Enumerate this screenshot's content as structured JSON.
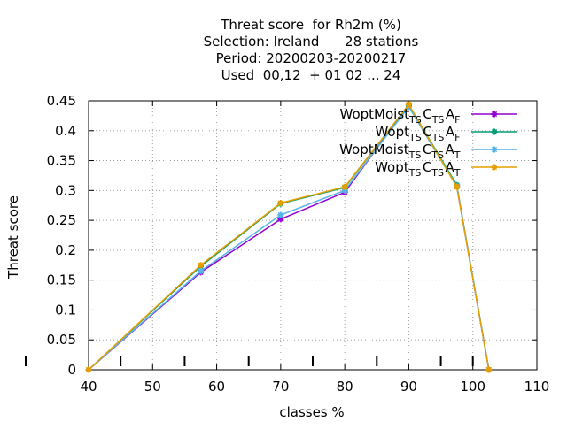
{
  "chart_data": {
    "type": "line",
    "title_lines": [
      "Threat score  for Rh2m (%)",
      "Selection: Ireland      28 stations",
      "Period: 20200203-20200217",
      "Used  00,12  + 01 02 ... 24"
    ],
    "xlabel": "classes %",
    "ylabel": "Threat score",
    "xlim": [
      40,
      110
    ],
    "ylim": [
      0,
      0.45
    ],
    "xticks": [
      40,
      50,
      60,
      70,
      80,
      90,
      100,
      110
    ],
    "yticks": [
      0,
      0.05,
      0.1,
      0.15,
      0.2,
      0.25,
      0.3,
      0.35,
      0.4,
      0.45
    ],
    "xtick_labels": [
      "40",
      "50",
      "60",
      "70",
      "80",
      "90",
      "100",
      "110"
    ],
    "ytick_labels": [
      "0",
      "0.05",
      "0.1",
      "0.15",
      "0.2",
      "0.25",
      "0.3",
      "0.35",
      "0.4",
      "0.45"
    ],
    "class_bounds": [
      45,
      55,
      65,
      75,
      85,
      95,
      100
    ],
    "grid": true,
    "legend_position": "top-right",
    "series": [
      {
        "name_parts": [
          {
            "t": "WoptMoist"
          },
          {
            "t": "TS",
            "sub": true
          },
          {
            "t": "C"
          },
          {
            "t": "TS",
            "sub": true
          },
          {
            "t": "A"
          },
          {
            "t": "F",
            "sub": true
          }
        ],
        "color": "#9400d3",
        "marker": "plus-x",
        "x": [
          40,
          57.5,
          70,
          80,
          90,
          97.5,
          102.5
        ],
        "y": [
          0,
          0.163,
          0.252,
          0.297,
          0.443,
          0.307,
          0
        ]
      },
      {
        "name_parts": [
          {
            "t": "Wopt"
          },
          {
            "t": "TS",
            "sub": true
          },
          {
            "t": "C"
          },
          {
            "t": "TS",
            "sub": true
          },
          {
            "t": "A"
          },
          {
            "t": "F",
            "sub": true
          }
        ],
        "color": "#009e73",
        "marker": "plus-x",
        "x": [
          40,
          57.5,
          70,
          80,
          90,
          97.5,
          102.5
        ],
        "y": [
          0,
          0.173,
          0.278,
          0.305,
          0.443,
          0.309,
          0
        ]
      },
      {
        "name_parts": [
          {
            "t": "WoptMoist"
          },
          {
            "t": "TS",
            "sub": true
          },
          {
            "t": "C"
          },
          {
            "t": "TS",
            "sub": true
          },
          {
            "t": "A"
          },
          {
            "t": "T",
            "sub": true
          }
        ],
        "color": "#56b4e9",
        "marker": "plus-x",
        "x": [
          40,
          57.5,
          70,
          80,
          90,
          97.5,
          102.5
        ],
        "y": [
          0,
          0.165,
          0.259,
          0.3,
          0.44,
          0.307,
          0
        ]
      },
      {
        "name_parts": [
          {
            "t": "Wopt"
          },
          {
            "t": "TS",
            "sub": true
          },
          {
            "t": "C"
          },
          {
            "t": "TS",
            "sub": true
          },
          {
            "t": "A"
          },
          {
            "t": "T",
            "sub": true
          }
        ],
        "color": "#e69f00",
        "marker": "plus-x",
        "x": [
          40,
          57.5,
          70,
          80,
          90,
          97.5,
          102.5
        ],
        "y": [
          0,
          0.175,
          0.279,
          0.306,
          0.444,
          0.306,
          0
        ]
      }
    ]
  }
}
